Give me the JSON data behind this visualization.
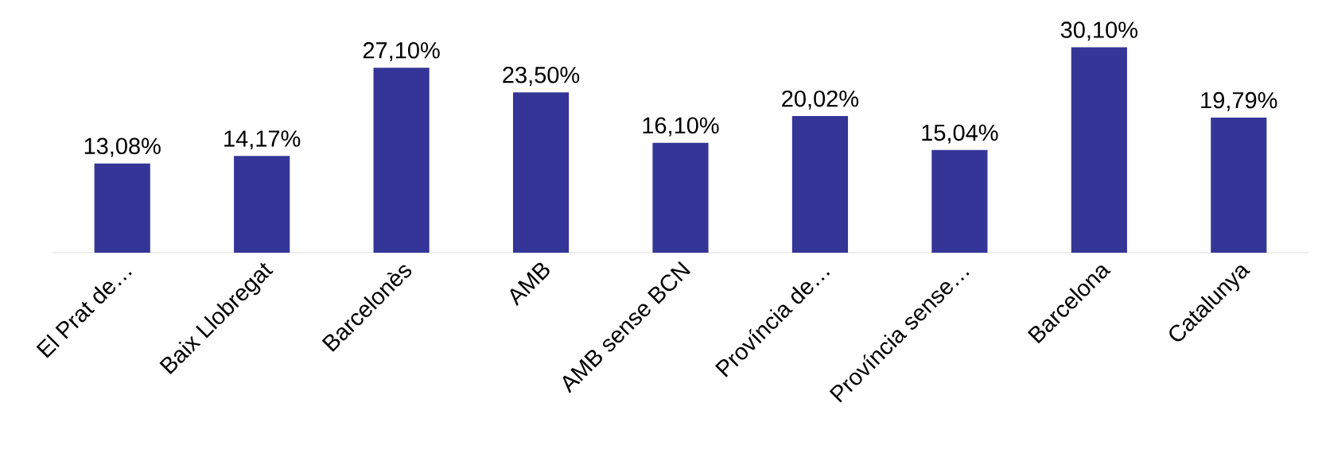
{
  "chart_data": {
    "type": "bar",
    "categories": [
      "El Prat de…",
      "Baix Llobregat",
      "Barcelonès",
      "AMB",
      "AMB sense BCN",
      "Província de…",
      "Província sense…",
      "Barcelona",
      "Catalunya"
    ],
    "values": [
      13.08,
      14.17,
      27.1,
      23.5,
      16.1,
      20.02,
      15.04,
      30.1,
      19.79
    ],
    "value_labels": [
      "13,08%",
      "14,17%",
      "27,10%",
      "23,50%",
      "16,10%",
      "20,02%",
      "15,04%",
      "30,10%",
      "19,79%"
    ],
    "color": "#353597"
  }
}
